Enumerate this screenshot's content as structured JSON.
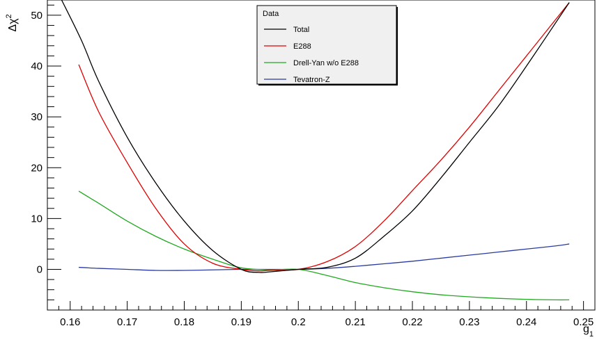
{
  "chart_data": {
    "type": "line",
    "title": "",
    "xlabel": "g1",
    "xlabel_main": "g",
    "xlabel_sub": "1",
    "ylabel": "Δχ2",
    "ylabel_main": "Δχ",
    "ylabel_sup": "2",
    "xlim": [
      0.156,
      0.252
    ],
    "ylim": [
      -8,
      53
    ],
    "x_ticks": [
      0.16,
      0.17,
      0.18,
      0.19,
      0.2,
      0.21,
      0.22,
      0.23,
      0.24,
      0.25
    ],
    "x_tick_labels": [
      "0.16",
      "0.17",
      "0.18",
      "0.19",
      "0.2",
      "0.21",
      "0.22",
      "0.23",
      "0.24",
      "0.25"
    ],
    "y_ticks": [
      0,
      10,
      20,
      30,
      40,
      50
    ],
    "y_tick_labels": [
      "0",
      "10",
      "20",
      "30",
      "40",
      "50"
    ],
    "grid": false,
    "legend": {
      "title": "Data",
      "placement": "top-center",
      "entries": [
        "Total",
        "E288",
        "Drell-Yan w/o E288",
        "Tevatron-Z"
      ]
    },
    "series": [
      {
        "name": "Total",
        "color": "#000000",
        "x": [
          0.1585,
          0.162,
          0.165,
          0.17,
          0.175,
          0.18,
          0.185,
          0.19,
          0.193,
          0.195,
          0.2,
          0.205,
          0.21,
          0.215,
          0.22,
          0.225,
          0.23,
          0.235,
          0.24,
          0.2475
        ],
        "y": [
          53,
          45,
          37,
          26,
          17,
          9.5,
          3.7,
          0,
          -0.6,
          -0.5,
          0,
          0.4,
          2.2,
          6.5,
          11.5,
          18,
          25,
          32,
          40,
          52.5
        ]
      },
      {
        "name": "E288",
        "color": "#e00000",
        "x": [
          0.1615,
          0.165,
          0.17,
          0.175,
          0.18,
          0.185,
          0.19,
          0.193,
          0.195,
          0.2,
          0.205,
          0.21,
          0.215,
          0.22,
          0.225,
          0.23,
          0.235,
          0.24,
          0.2475
        ],
        "y": [
          40.3,
          31,
          21,
          12,
          5,
          1.2,
          0,
          -0.3,
          -0.2,
          0,
          1.5,
          4.5,
          9.5,
          15.5,
          21.5,
          28,
          35,
          42,
          52.5
        ]
      },
      {
        "name": "Drell-Yan w/o E288",
        "color": "#21a821",
        "x": [
          0.1615,
          0.165,
          0.17,
          0.175,
          0.18,
          0.185,
          0.19,
          0.195,
          0.2,
          0.205,
          0.21,
          0.215,
          0.22,
          0.225,
          0.23,
          0.235,
          0.24,
          0.245,
          0.2475
        ],
        "y": [
          15.4,
          13,
          9.5,
          6.5,
          4,
          2,
          0.3,
          -0.1,
          0,
          -1.2,
          -2.6,
          -3.6,
          -4.4,
          -5,
          -5.4,
          -5.7,
          -5.9,
          -6,
          -6
        ]
      },
      {
        "name": "Tevatron-Z",
        "color": "#2a3aa0",
        "x": [
          0.1615,
          0.165,
          0.17,
          0.175,
          0.18,
          0.185,
          0.19,
          0.195,
          0.2,
          0.205,
          0.21,
          0.215,
          0.22,
          0.225,
          0.23,
          0.235,
          0.24,
          0.245,
          0.2475
        ],
        "y": [
          0.4,
          0.2,
          0,
          -0.2,
          -0.2,
          -0.1,
          0,
          0,
          0,
          0.2,
          0.6,
          1.1,
          1.6,
          2.2,
          2.8,
          3.4,
          4,
          4.6,
          5
        ]
      }
    ]
  }
}
